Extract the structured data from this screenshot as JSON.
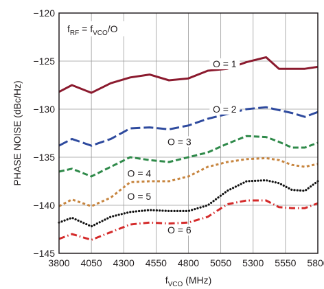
{
  "chart_data": {
    "type": "line",
    "xlabel": "f",
    "xlabel_sub": "VCO",
    "xlabel_unit": " (MHz)",
    "ylabel": "PHASE NOISE (dBc/Hz)",
    "xlim": [
      3800,
      5800
    ],
    "ylim": [
      -145,
      -120
    ],
    "xticks": [
      3800,
      4050,
      4300,
      4550,
      4800,
      5050,
      5300,
      5550,
      5800
    ],
    "yticks": [
      -120,
      -125,
      -130,
      -135,
      -140,
      -145
    ],
    "grid": true,
    "annotation": {
      "main": "f",
      "sub1": "RF",
      "mid": " = f",
      "sub2": "VCO",
      "end": "/O"
    },
    "series": [
      {
        "name": "O = 1",
        "color": "#8b1a2e",
        "dash": "solid",
        "x": [
          3800,
          3900,
          4050,
          4200,
          4350,
          4500,
          4650,
          4800,
          4950,
          5100,
          5250,
          5400,
          5500,
          5600,
          5700,
          5800
        ],
        "y": [
          -128.2,
          -127.5,
          -128.3,
          -127.3,
          -126.7,
          -126.4,
          -127.0,
          -126.8,
          -126.0,
          -125.8,
          -125.1,
          -124.6,
          -125.8,
          -125.8,
          -125.8,
          -125.6
        ]
      },
      {
        "name": "O = 2",
        "color": "#2e4a9e",
        "dash": "longdash",
        "x": [
          3800,
          3900,
          4050,
          4200,
          4350,
          4500,
          4650,
          4800,
          4950,
          5100,
          5250,
          5400,
          5500,
          5600,
          5700,
          5800
        ],
        "y": [
          -133.8,
          -133.1,
          -133.8,
          -133.1,
          -132.0,
          -131.9,
          -132.1,
          -131.7,
          -131.0,
          -130.5,
          -130.0,
          -129.8,
          -130.1,
          -130.4,
          -130.8,
          -130.3
        ]
      },
      {
        "name": "O = 3",
        "color": "#2f8a4a",
        "dash": "dash",
        "x": [
          3800,
          3900,
          4050,
          4200,
          4350,
          4500,
          4650,
          4800,
          4950,
          5100,
          5250,
          5400,
          5500,
          5600,
          5700,
          5800
        ],
        "y": [
          -136.5,
          -136.2,
          -137.0,
          -136.0,
          -135.0,
          -135.3,
          -135.5,
          -135.0,
          -134.5,
          -133.6,
          -132.8,
          -132.9,
          -133.4,
          -134.0,
          -134.0,
          -133.5
        ]
      },
      {
        "name": "O = 4",
        "color": "#c7853f",
        "dash": "shortdash",
        "x": [
          3800,
          3900,
          4050,
          4200,
          4350,
          4500,
          4650,
          4800,
          4950,
          5100,
          5250,
          5400,
          5500,
          5600,
          5700,
          5800
        ],
        "y": [
          -140.1,
          -139.4,
          -140.1,
          -139.2,
          -137.6,
          -137.5,
          -137.5,
          -137.0,
          -136.0,
          -135.5,
          -135.2,
          -135.1,
          -135.3,
          -135.8,
          -136.0,
          -135.7
        ]
      },
      {
        "name": "O = 5",
        "color": "#111111",
        "dash": "dot",
        "x": [
          3800,
          3900,
          4050,
          4200,
          4350,
          4500,
          4650,
          4800,
          4950,
          5100,
          5250,
          5400,
          5500,
          5600,
          5700,
          5800
        ],
        "y": [
          -141.8,
          -141.3,
          -142.2,
          -141.2,
          -140.7,
          -140.5,
          -140.6,
          -140.6,
          -140.0,
          -138.5,
          -137.5,
          -137.4,
          -137.7,
          -138.4,
          -138.5,
          -137.5
        ]
      },
      {
        "name": "O = 6",
        "color": "#d42a2a",
        "dash": "dashdot",
        "x": [
          3800,
          3900,
          4050,
          4200,
          4350,
          4500,
          4650,
          4800,
          4950,
          5100,
          5250,
          5400,
          5500,
          5600,
          5700,
          5800
        ],
        "y": [
          -143.5,
          -143.0,
          -143.6,
          -142.8,
          -142.0,
          -141.8,
          -141.9,
          -141.8,
          -141.2,
          -139.9,
          -139.5,
          -139.5,
          -140.2,
          -140.3,
          -140.3,
          -139.8
        ]
      }
    ],
    "series_labels": [
      {
        "text": "O = 1",
        "x": 5080,
        "y": -125.5
      },
      {
        "text": "O = 2",
        "x": 5080,
        "y": -130.2
      },
      {
        "text": "O = 3",
        "x": 4730,
        "y": -133.6
      },
      {
        "text": "O = 4",
        "x": 4420,
        "y": -136.9
      },
      {
        "text": "O = 5",
        "x": 4420,
        "y": -139.3
      },
      {
        "text": "O = 6",
        "x": 4730,
        "y": -142.8
      }
    ]
  }
}
